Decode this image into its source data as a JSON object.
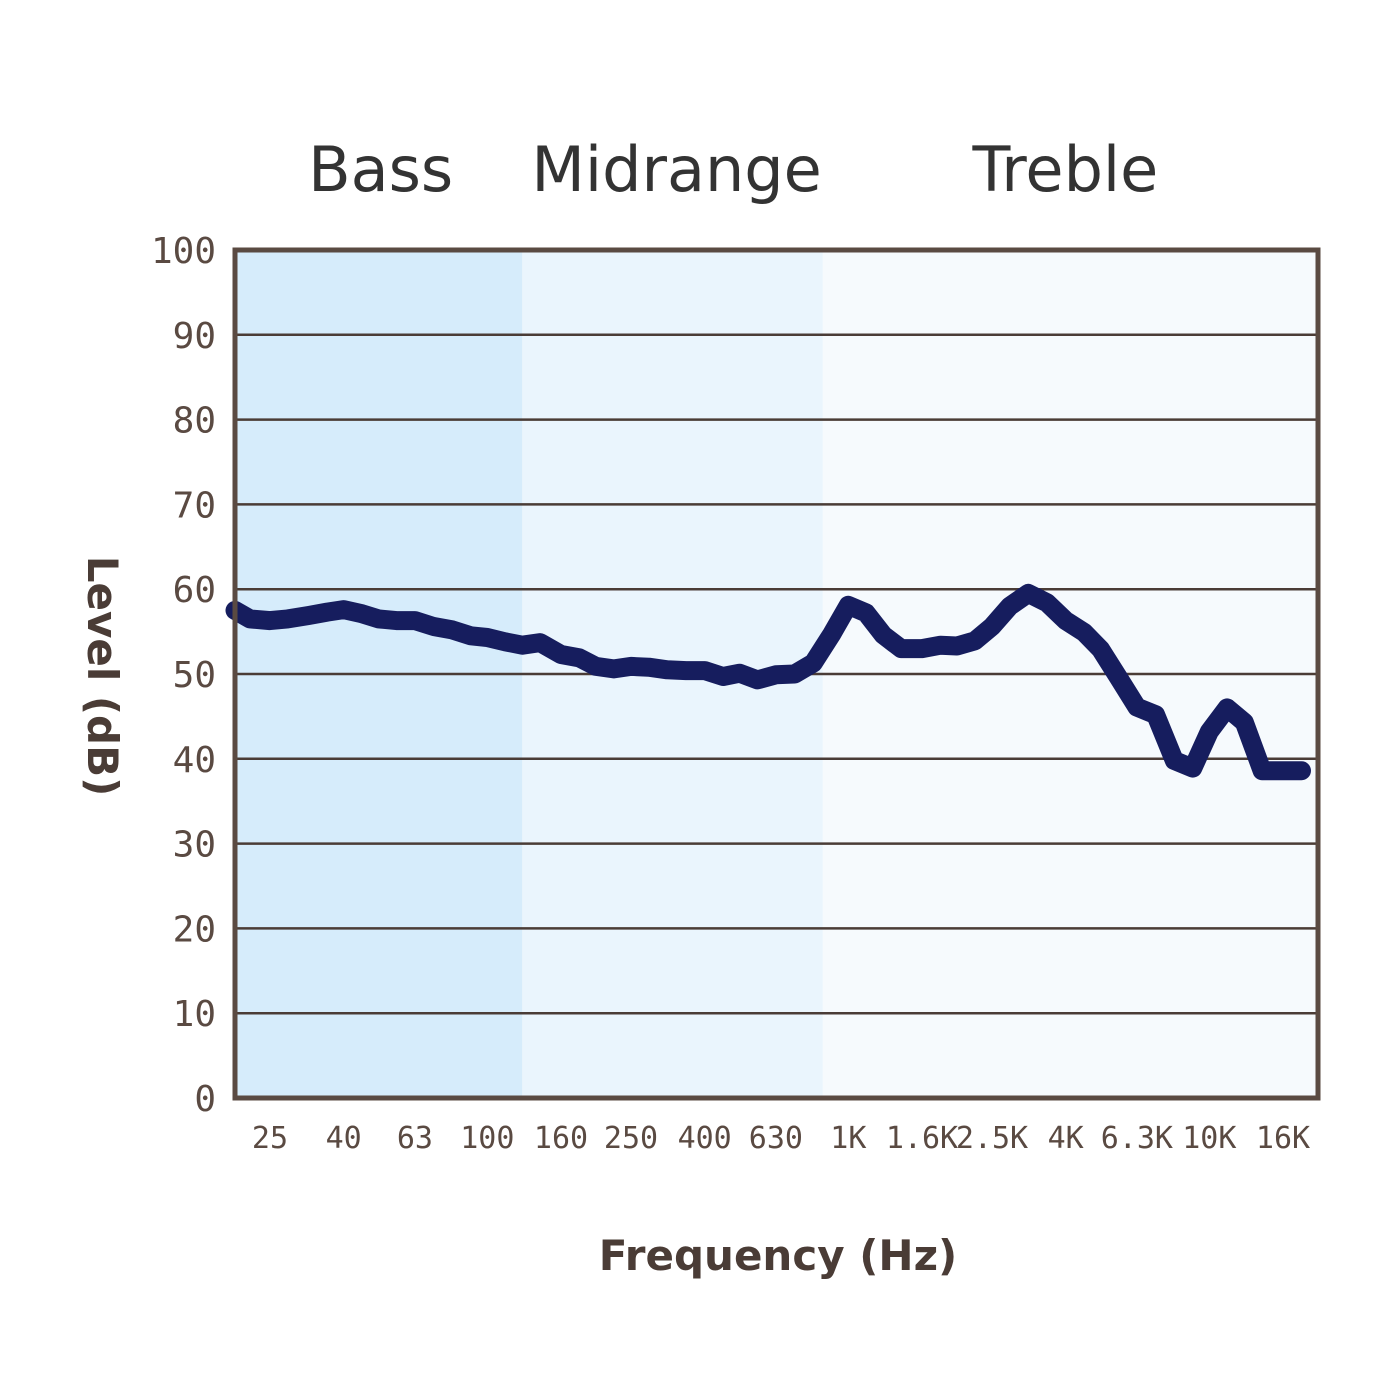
{
  "chart_data": {
    "type": "line",
    "title": "",
    "xlabel": "Frequency (Hz)",
    "ylabel": "Level (dB)",
    "ylim": [
      0,
      100
    ],
    "yticks": [
      "0",
      "10",
      "20",
      "30",
      "40",
      "50",
      "60",
      "70",
      "80",
      "90",
      "100"
    ],
    "grid": true,
    "x_scale": "log",
    "xtick_labels": [
      {
        "f": 25,
        "label": "25"
      },
      {
        "f": 40,
        "label": "40"
      },
      {
        "f": 63,
        "label": "63"
      },
      {
        "f": 100,
        "label": "100"
      },
      {
        "f": 160,
        "label": "160"
      },
      {
        "f": 250,
        "label": "250"
      },
      {
        "f": 400,
        "label": "400"
      },
      {
        "f": 630,
        "label": "630"
      },
      {
        "f": 1000,
        "label": "1K"
      },
      {
        "f": 1600,
        "label": "1.6K"
      },
      {
        "f": 2500,
        "label": "2.5K"
      },
      {
        "f": 4000,
        "label": "4K"
      },
      {
        "f": 6300,
        "label": "6.3K"
      },
      {
        "f": 10000,
        "label": "10K"
      },
      {
        "f": 16000,
        "label": "16K"
      }
    ],
    "bands": [
      {
        "label": "Bass",
        "from": 20,
        "to": 125,
        "color": "#d6ecfb"
      },
      {
        "label": "Midrange",
        "from": 125,
        "to": 850,
        "color": "#eaf5fd"
      },
      {
        "label": "Treble",
        "from": 850,
        "to": 20000,
        "color": "#f6fafd"
      }
    ],
    "series": [
      {
        "color": "#161d5e",
        "points": [
          [
            20,
            57.5
          ],
          [
            22,
            56.5
          ],
          [
            25,
            56.3
          ],
          [
            28,
            56.5
          ],
          [
            32,
            56.9
          ],
          [
            36,
            57.3
          ],
          [
            40,
            57.6
          ],
          [
            45,
            57.1
          ],
          [
            50,
            56.5
          ],
          [
            56,
            56.3
          ],
          [
            63,
            56.3
          ],
          [
            71,
            55.6
          ],
          [
            80,
            55.2
          ],
          [
            90,
            54.5
          ],
          [
            100,
            54.3
          ],
          [
            112,
            53.8
          ],
          [
            125,
            53.4
          ],
          [
            140,
            53.7
          ],
          [
            160,
            52.3
          ],
          [
            180,
            51.9
          ],
          [
            200,
            50.9
          ],
          [
            224,
            50.6
          ],
          [
            250,
            50.9
          ],
          [
            280,
            50.8
          ],
          [
            315,
            50.5
          ],
          [
            355,
            50.4
          ],
          [
            400,
            50.4
          ],
          [
            450,
            49.7
          ],
          [
            500,
            50.1
          ],
          [
            560,
            49.3
          ],
          [
            630,
            49.9
          ],
          [
            710,
            50.0
          ],
          [
            800,
            51.3
          ],
          [
            900,
            54.7
          ],
          [
            1000,
            58.1
          ],
          [
            1120,
            57.2
          ],
          [
            1250,
            54.6
          ],
          [
            1400,
            53.0
          ],
          [
            1600,
            53.0
          ],
          [
            1800,
            53.4
          ],
          [
            2000,
            53.3
          ],
          [
            2240,
            53.9
          ],
          [
            2500,
            55.6
          ],
          [
            2800,
            58.0
          ],
          [
            3150,
            59.5
          ],
          [
            3550,
            58.4
          ],
          [
            4000,
            56.3
          ],
          [
            4500,
            54.9
          ],
          [
            5000,
            52.9
          ],
          [
            5600,
            49.6
          ],
          [
            6300,
            46.1
          ],
          [
            7100,
            45.2
          ],
          [
            8000,
            39.8
          ],
          [
            9000,
            38.9
          ],
          [
            10000,
            43.2
          ],
          [
            11200,
            46.0
          ],
          [
            12500,
            44.3
          ],
          [
            14000,
            38.6
          ],
          [
            16000,
            38.6
          ],
          [
            18000,
            38.6
          ]
        ]
      }
    ]
  }
}
